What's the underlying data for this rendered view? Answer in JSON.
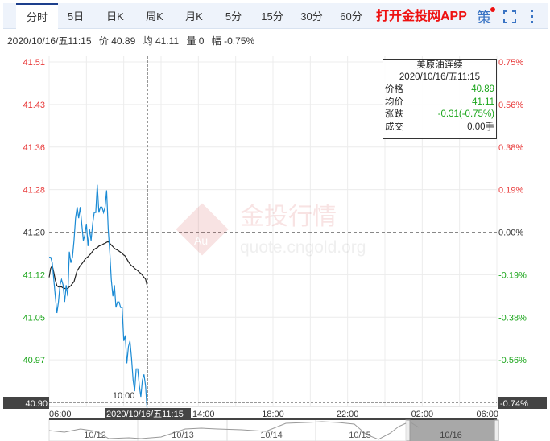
{
  "tabs": [
    {
      "label": "分时",
      "active": true
    },
    {
      "label": "5日"
    },
    {
      "label": "日K"
    },
    {
      "label": "周K"
    },
    {
      "label": "月K"
    },
    {
      "label": "5分"
    },
    {
      "label": "15分"
    },
    {
      "label": "30分"
    },
    {
      "label": "60分"
    }
  ],
  "app_link": "打开金投网APP",
  "strategy_label": "策",
  "icons": {
    "fullscreen": "fullscreen-icon",
    "more": "more-vertical-icon"
  },
  "info": {
    "datetime": "2020/10/16/五11:15",
    "price": "价 40.89",
    "avg": "均 41.11",
    "volume": "量 0",
    "change": "幅 -0.75%"
  },
  "tooltip": {
    "title": "美原油连续",
    "datetime": "2020/10/16/五11:15",
    "rows": [
      {
        "label": "价格",
        "value": "40.89"
      },
      {
        "label": "均价",
        "value": "41.11"
      },
      {
        "label": "涨跌",
        "value": "-0.31(-0.75%)"
      },
      {
        "label": "成交",
        "value": "0.00手"
      }
    ]
  },
  "watermark": {
    "brand": "金投行情",
    "url": "quote.cngold.org",
    "logo": "Au"
  },
  "crosshair": {
    "price": "40.90",
    "percent": "-0.74%",
    "time": "2020/10/16/五11:15"
  },
  "colors": {
    "price_line": "#1a8ad4",
    "avg_line": "#222222",
    "up": "#e83a3a",
    "down": "#1aa51a",
    "tab_accent": "#1d3f8c"
  },
  "chart_data": {
    "type": "line",
    "reference_price": 41.2,
    "ylim": [
      40.9,
      41.51
    ],
    "y_ticks": [
      "41.51",
      "41.43",
      "41.36",
      "41.28",
      "41.20",
      "41.12",
      "41.05",
      "40.97",
      "40.90"
    ],
    "y_ticks_pct": [
      "0.75%",
      "0.56%",
      "0.38%",
      "0.19%",
      "0.00%",
      "-0.19%",
      "-0.38%",
      "-0.56%",
      "-0.74%"
    ],
    "x_range": [
      "06:00",
      "06:00 (+1 day)"
    ],
    "x_ticks": [
      "06:00",
      "10:00",
      "14:00",
      "18:00",
      "22:00",
      "02:00",
      "06:00"
    ],
    "grid": true,
    "x_start": "06:00",
    "interval_minutes": 5,
    "series": [
      {
        "key": "price",
        "values": [
          41.16,
          41.16,
          41.15,
          41.12,
          41.09,
          41.06,
          41.08,
          41.11,
          41.12,
          41.11,
          41.08,
          41.11,
          41.09,
          41.17,
          41.15,
          41.16,
          41.19,
          41.23,
          41.25,
          41.23,
          41.25,
          41.22,
          41.19,
          41.2,
          41.22,
          41.18,
          41.21,
          41.19,
          41.22,
          41.24,
          41.24,
          41.29,
          41.24,
          41.25,
          41.25,
          41.24,
          41.25,
          41.28,
          41.21,
          41.17,
          41.12,
          41.09,
          41.11,
          41.07,
          41.08,
          41.08,
          41.07,
          41.07,
          41.01,
          41.02,
          40.97,
          41.0,
          41.01,
          40.98,
          40.94,
          40.92,
          40.96,
          40.96,
          40.93,
          40.91,
          40.94,
          40.95,
          40.93,
          40.89
        ]
      },
      {
        "key": "average",
        "values": [
          41.124,
          41.14,
          41.145,
          41.133,
          41.119,
          41.109,
          41.107,
          41.107,
          41.107,
          41.105,
          41.104,
          41.104,
          41.104,
          41.107,
          41.109,
          41.113,
          41.116,
          41.126,
          41.136,
          41.14,
          41.145,
          41.148,
          41.152,
          41.156,
          41.159,
          41.161,
          41.164,
          41.167,
          41.171,
          41.174,
          41.176,
          41.177,
          41.18,
          41.181,
          41.182,
          41.184,
          41.185,
          41.187,
          41.188,
          41.185,
          41.182,
          41.179,
          41.176,
          41.174,
          41.173,
          41.171,
          41.169,
          41.167,
          41.164,
          41.162,
          41.157,
          41.152,
          41.148,
          41.145,
          41.143,
          41.14,
          41.138,
          41.136,
          41.133,
          41.131,
          41.128,
          41.124,
          41.121,
          41.11
        ]
      }
    ],
    "navigator": {
      "labels": [
        "10/12",
        "10/13",
        "10/14",
        "10/15",
        "10/16"
      ],
      "selected": "10/16"
    }
  }
}
